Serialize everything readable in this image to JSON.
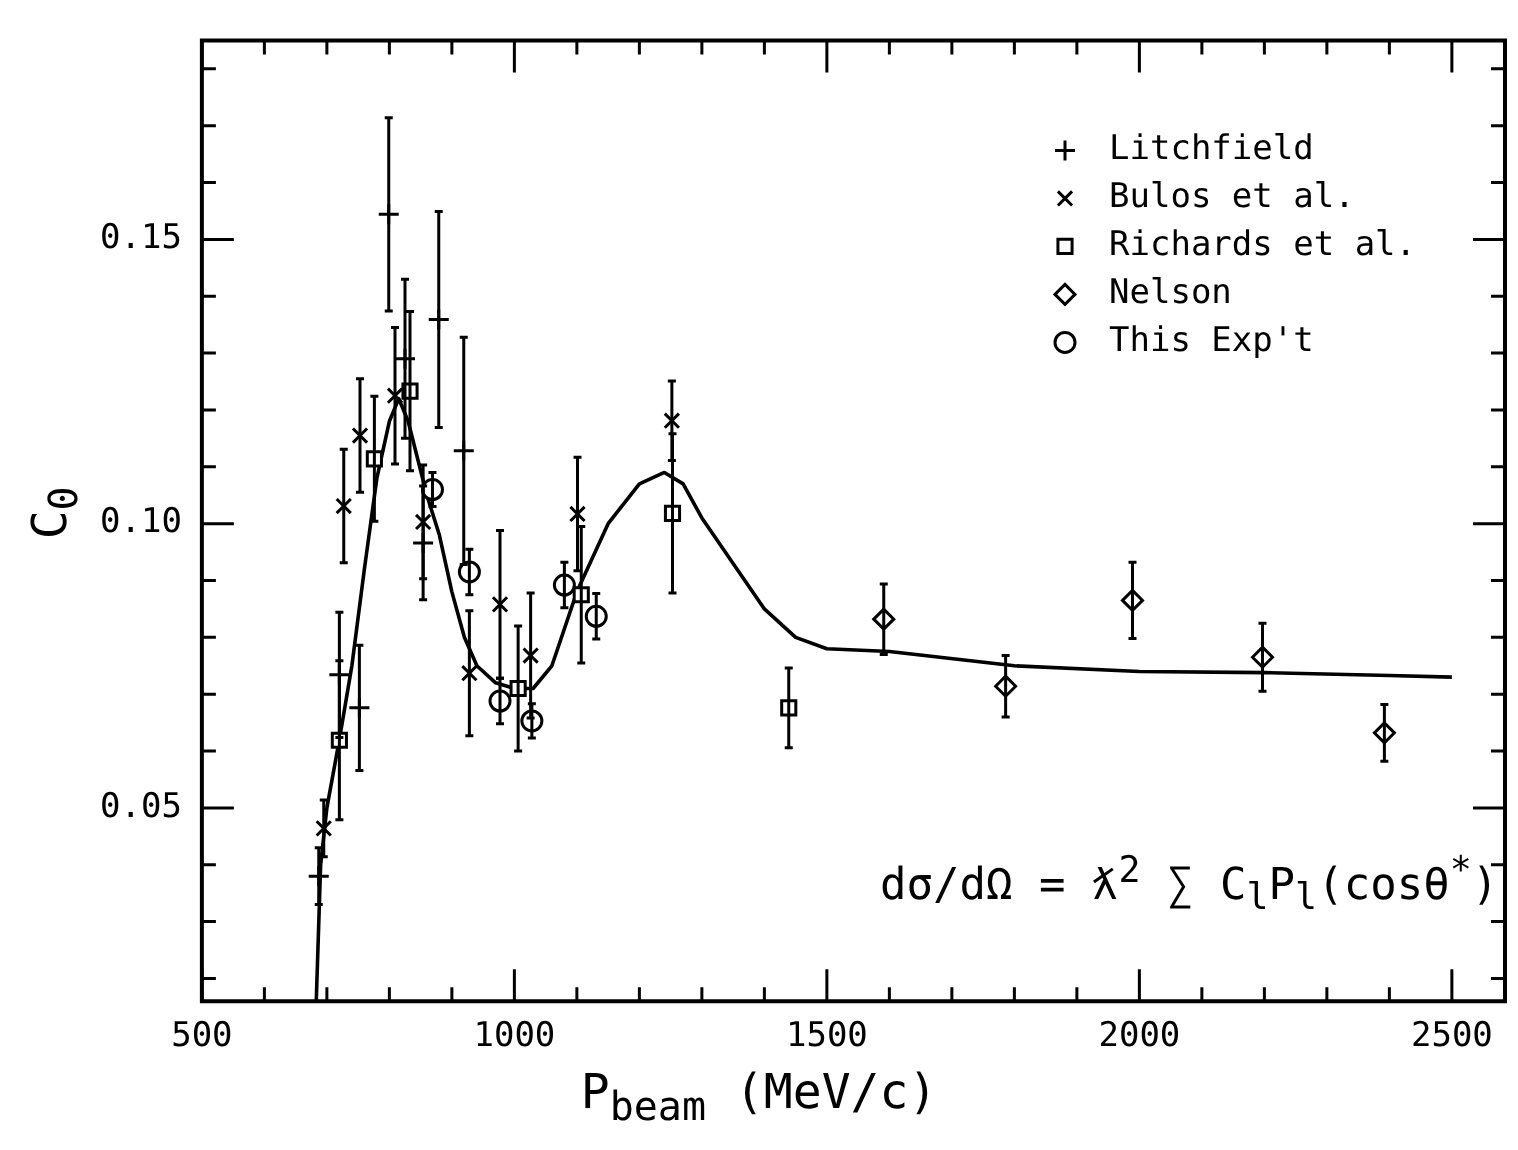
{
  "chart_data": {
    "type": "scatter",
    "xlabel": "P$_{beam}$ (MeV/c)",
    "ylabel": "C$_{0}$",
    "xlim": [
      500,
      2585
    ],
    "ylim": [
      0.016,
      0.185
    ],
    "xticks": [
      500,
      {
        "value": 600,
        "label": null
      },
      {
        "value": 700,
        "label": null
      },
      {
        "value": 800,
        "label": null
      },
      {
        "value": 900,
        "label": null
      },
      1000,
      {
        "value": 1100,
        "label": null
      },
      {
        "value": 1200,
        "label": null
      },
      {
        "value": 1300,
        "label": null
      },
      {
        "value": 1400,
        "label": null
      },
      1500,
      {
        "value": 1600,
        "label": null
      },
      {
        "value": 1700,
        "label": null
      },
      {
        "value": 1800,
        "label": null
      },
      {
        "value": 1900,
        "label": null
      },
      2000,
      {
        "value": 2100,
        "label": null
      },
      {
        "value": 2200,
        "label": null
      },
      {
        "value": 2300,
        "label": null
      },
      {
        "value": 2400,
        "label": null
      },
      2500
    ],
    "yticks": [
      {
        "value": 0.02,
        "label": null
      },
      {
        "value": 0.03,
        "label": null
      },
      {
        "value": 0.04,
        "label": null
      },
      0.05,
      {
        "value": 0.06,
        "label": null
      },
      {
        "value": 0.07,
        "label": null
      },
      {
        "value": 0.08,
        "label": null
      },
      {
        "value": 0.09,
        "label": null
      },
      {
        "value": 0.1,
        "label": "0.10"
      },
      {
        "value": 0.11,
        "label": null
      },
      {
        "value": 0.12,
        "label": null
      },
      {
        "value": 0.13,
        "label": null
      },
      {
        "value": 0.14,
        "label": null
      },
      0.15,
      {
        "value": 0.16,
        "label": null
      },
      {
        "value": 0.17,
        "label": null
      },
      {
        "value": 0.18,
        "label": null
      }
    ],
    "legend": "top right",
    "grid": false,
    "series": [
      {
        "name": "Litchfield",
        "color": "#000000",
        "marker": "cross",
        "x": [
          687,
          720,
          752,
          799,
          825,
          854,
          879,
          919
        ],
        "values": [
          0.038,
          0.0734,
          0.0676,
          0.1544,
          0.129,
          0.0966,
          0.1359,
          0.1128
        ],
        "errors": [
          0.005,
          0.011,
          0.011,
          0.017,
          0.014,
          0.01,
          0.019,
          0.02
        ]
      },
      {
        "name": "Bulos et al.",
        "color": "#000000",
        "marker": "x",
        "x": [
          695,
          727,
          753,
          809,
          854,
          928,
          977,
          1026,
          1101,
          1252
        ],
        "values": [
          0.0464,
          0.1031,
          0.1155,
          0.1225,
          0.1003,
          0.0737,
          0.0858,
          0.0768,
          0.1017,
          0.1181
        ],
        "errors": [
          0.005,
          0.01,
          0.01,
          0.012,
          0.01,
          0.011,
          0.013,
          0.011,
          0.01,
          0.007
        ]
      },
      {
        "name": "Richards et al.",
        "color": "#000000",
        "marker": "square",
        "x": [
          720,
          776,
          833,
          1006,
          1107,
          1253,
          1439
        ],
        "values": [
          0.0619,
          0.1114,
          0.1233,
          0.071,
          0.0875,
          0.1018,
          0.0676
        ],
        "errors": [
          0.014,
          0.011,
          0.014,
          0.011,
          0.012,
          0.014,
          0.007
        ]
      },
      {
        "name": "Nelson",
        "color": "#000000",
        "marker": "diamond",
        "x": [
          1591,
          1786,
          1989,
          2197,
          2392
        ],
        "values": [
          0.0832,
          0.0714,
          0.0865,
          0.0765,
          0.0632
        ],
        "errors": [
          0.0062,
          0.0054,
          0.0067,
          0.006,
          0.005
        ]
      },
      {
        "name": "This Exp't",
        "color": "#000000",
        "marker": "circle",
        "x": [
          869,
          928,
          977,
          1028,
          1080,
          1131
        ],
        "values": [
          0.106,
          0.0915,
          0.0688,
          0.0653,
          0.0892,
          0.0837
        ],
        "errors": [
          0.003,
          0.004,
          0.004,
          0.003,
          0.004,
          0.004
        ]
      },
      {
        "type": "line",
        "color": "#000000",
        "marker": "none",
        "x": [
          683,
          690,
          700,
          720,
          740,
          760,
          780,
          800,
          815,
          830,
          860,
          880,
          900,
          920,
          940,
          970,
          1000,
          1030,
          1060,
          1100,
          1150,
          1200,
          1240,
          1270,
          1300,
          1350,
          1400,
          1450,
          1500,
          1600,
          1800,
          2000,
          2200,
          2400,
          2500
        ],
        "values": [
          0.016,
          0.04,
          0.05,
          0.062,
          0.075,
          0.092,
          0.108,
          0.118,
          0.122,
          0.118,
          0.105,
          0.098,
          0.088,
          0.08,
          0.075,
          0.072,
          0.071,
          0.071,
          0.075,
          0.088,
          0.1,
          0.107,
          0.109,
          0.107,
          0.101,
          0.093,
          0.085,
          0.08,
          0.078,
          0.0775,
          0.075,
          0.074,
          0.0738,
          0.0733,
          0.073
        ]
      }
    ],
    "annotations": [
      "dσ/dΩ = ƛ$^{2}$ ∑ C$_{l}$P$_{l}$(cosθ$^{*}$)"
    ]
  }
}
